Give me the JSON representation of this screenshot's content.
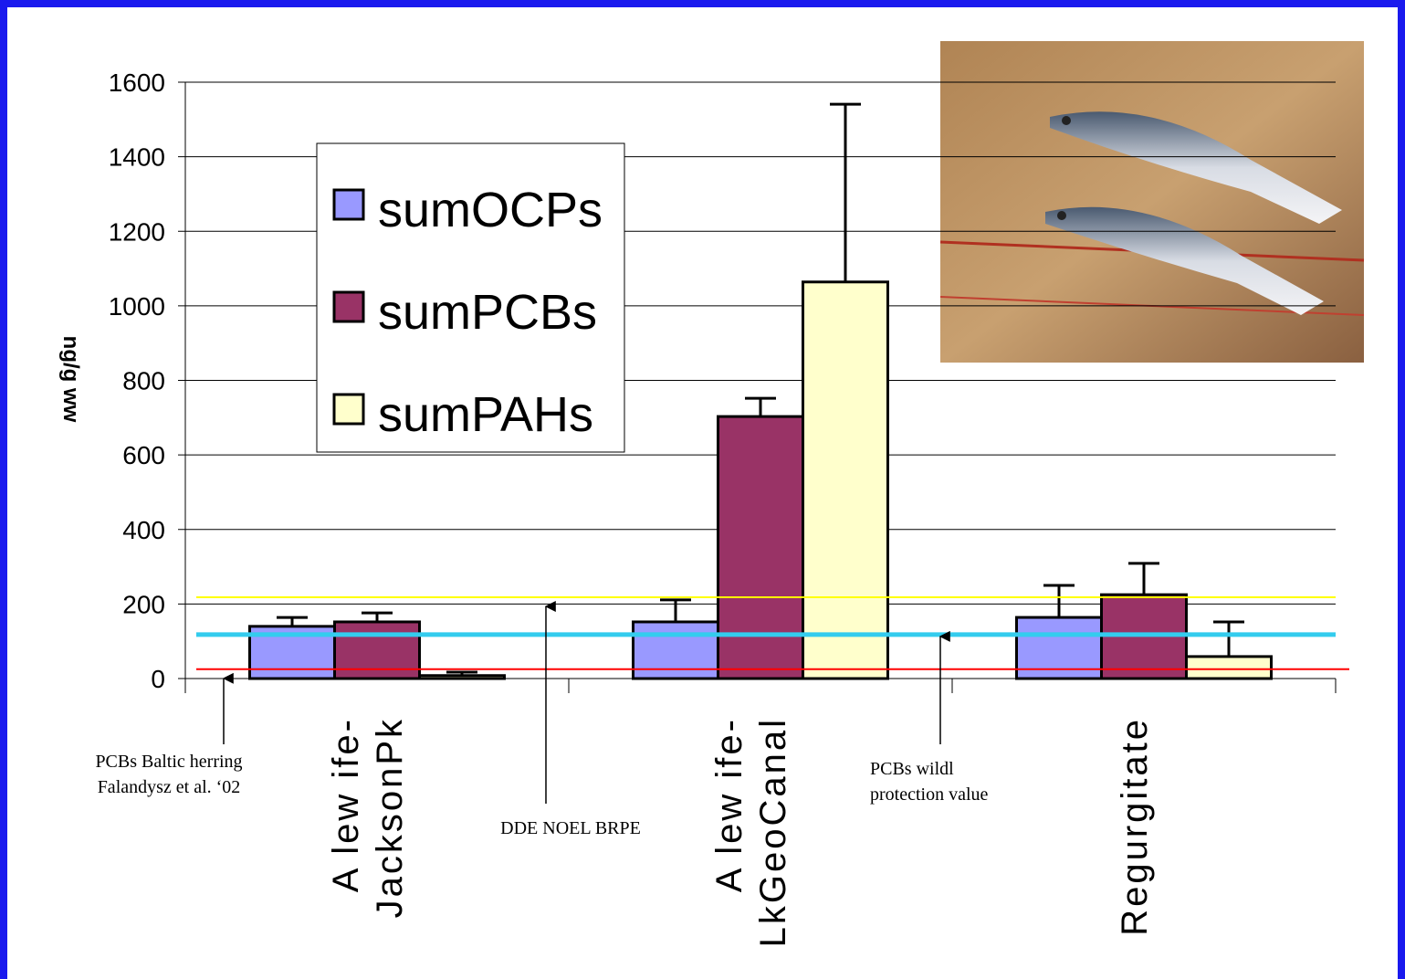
{
  "chart_data": {
    "type": "bar",
    "y_label": "ng/g ww",
    "categories": [
      [
        "A lew ife-",
        "JacksonPk"
      ],
      [
        "A lew ife-",
        "LkGeoCanal"
      ],
      [
        "Regurgitate"
      ]
    ],
    "series": [
      {
        "name": "sumOCPs",
        "color": "#9999ff",
        "values": [
          140,
          152,
          164
        ],
        "errors": [
          24,
          59,
          86
        ]
      },
      {
        "name": "sumPCBs",
        "color": "#993366",
        "values": [
          152,
          703,
          225
        ],
        "errors": [
          24,
          49,
          84
        ]
      },
      {
        "name": "sumPAHs",
        "color": "#ffffcc",
        "values": [
          8,
          1064,
          59
        ],
        "errors": [
          9,
          477,
          93
        ]
      }
    ],
    "ylim": [
      0,
      1600
    ],
    "yticks": [
      0,
      200,
      400,
      600,
      800,
      1000,
      1200,
      1400,
      1600
    ],
    "grid": true,
    "legend": "upper left",
    "reference_lines": [
      {
        "value": 218,
        "color": "#ffff00"
      },
      {
        "value": 118,
        "color": "#33ccee"
      },
      {
        "value": 25,
        "color": "#ff0000"
      }
    ],
    "annotations": [
      {
        "lines": [
          "PCBs Baltic herring",
          "Falandysz et al. ‘02"
        ],
        "ref": 2
      },
      {
        "lines": [
          "DDE NOEL BRPE"
        ],
        "ref": 0
      },
      {
        "lines": [
          "PCBs wildl",
          "protection value"
        ],
        "ref": 1
      }
    ]
  }
}
